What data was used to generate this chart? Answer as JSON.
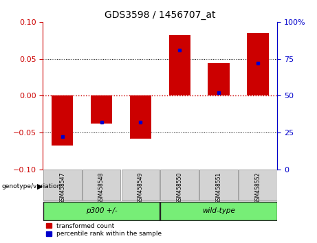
{
  "title": "GDS3598 / 1456707_at",
  "samples": [
    "GSM458547",
    "GSM458548",
    "GSM458549",
    "GSM458550",
    "GSM458551",
    "GSM458552"
  ],
  "transformed_count": [
    -0.068,
    -0.038,
    -0.058,
    0.082,
    0.044,
    0.085
  ],
  "percentile_rank": [
    0.22,
    0.32,
    0.32,
    0.81,
    0.52,
    0.72
  ],
  "ylim": [
    -0.1,
    0.1
  ],
  "yticks_left": [
    -0.1,
    -0.05,
    0,
    0.05,
    0.1
  ],
  "yticks_right": [
    0,
    25,
    50,
    75,
    100
  ],
  "group1_label": "p300 +/-",
  "group1_samples": [
    0,
    1,
    2
  ],
  "group2_label": "wild-type",
  "group2_samples": [
    3,
    4,
    5
  ],
  "bar_color": "#cc0000",
  "dot_color": "#0000cc",
  "bar_width": 0.55,
  "left_axis_color": "#cc0000",
  "right_axis_color": "#0000cc",
  "zero_line_color": "#cc0000",
  "grid_color": "#000000",
  "background_plot": "#ffffff",
  "background_label": "#d3d3d3",
  "background_group": "#77ee77",
  "legend1": "transformed count",
  "legend2": "percentile rank within the sample",
  "geno_label": "genotype/variation"
}
